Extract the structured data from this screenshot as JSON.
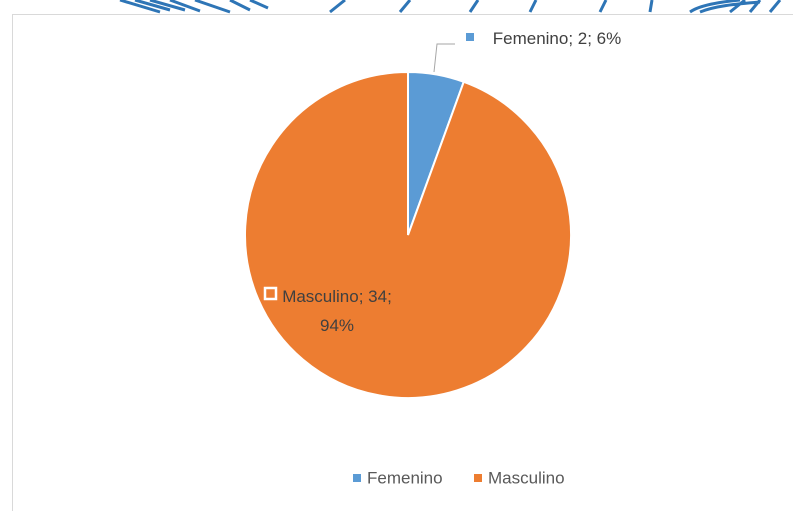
{
  "chart_data": {
    "type": "pie",
    "categories": [
      "Femenino",
      "Masculino"
    ],
    "values": [
      2,
      34
    ],
    "value_labels": [
      "Femenino; 2; 6%",
      "Masculino; 34; 94%"
    ],
    "colors": [
      "#5b9bd5",
      "#ed7d31"
    ],
    "legend": "bottom"
  }
}
